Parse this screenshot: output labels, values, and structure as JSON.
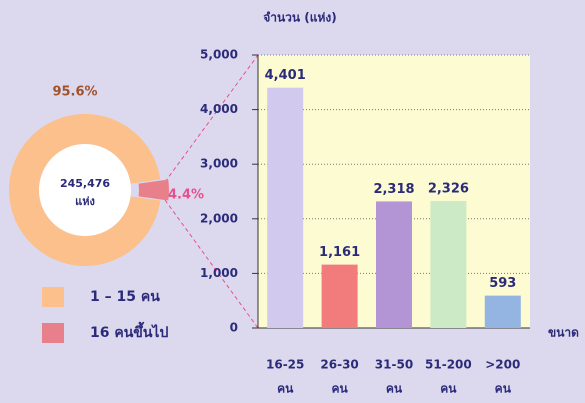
{
  "chart_data": [
    {
      "type": "donut",
      "center_label": "245,476",
      "center_sublabel": "แห่ง",
      "labels": [
        "1 – 15 คน",
        "16 คนขึ้นไป"
      ],
      "values": [
        95.6,
        4.4
      ],
      "value_labels": [
        "95.6%",
        "4.4%"
      ],
      "colors": [
        "#fcc08c",
        "#e8808c"
      ]
    },
    {
      "type": "bar",
      "ylabel": "จำนวน (แห่ง)",
      "xlabel": "ขนาด",
      "categories": [
        [
          "16-25",
          "คน"
        ],
        [
          "26-30",
          "คน"
        ],
        [
          "31-50",
          "คน"
        ],
        [
          "51-200",
          "คน"
        ],
        [
          ">200",
          "คน"
        ]
      ],
      "values": [
        4401,
        1161,
        2318,
        2326,
        593
      ],
      "value_labels": [
        "4,401",
        "1,161",
        "2,318",
        "2,326",
        "593"
      ],
      "colors": [
        "#d2caee",
        "#f27c7c",
        "#b394d4",
        "#cdeac6",
        "#94b4e2"
      ],
      "ylim": [
        0,
        5000
      ],
      "yticks": [
        0,
        {
          "value": 1000,
          "label": "1,000"
        },
        {
          "value": 2000,
          "label": "2,000"
        },
        {
          "value": 3000,
          "label": "3,000"
        },
        {
          "value": 4000,
          "label": "4,000"
        },
        {
          "value": 5000,
          "label": "5,000"
        }
      ],
      "grid": true
    }
  ]
}
